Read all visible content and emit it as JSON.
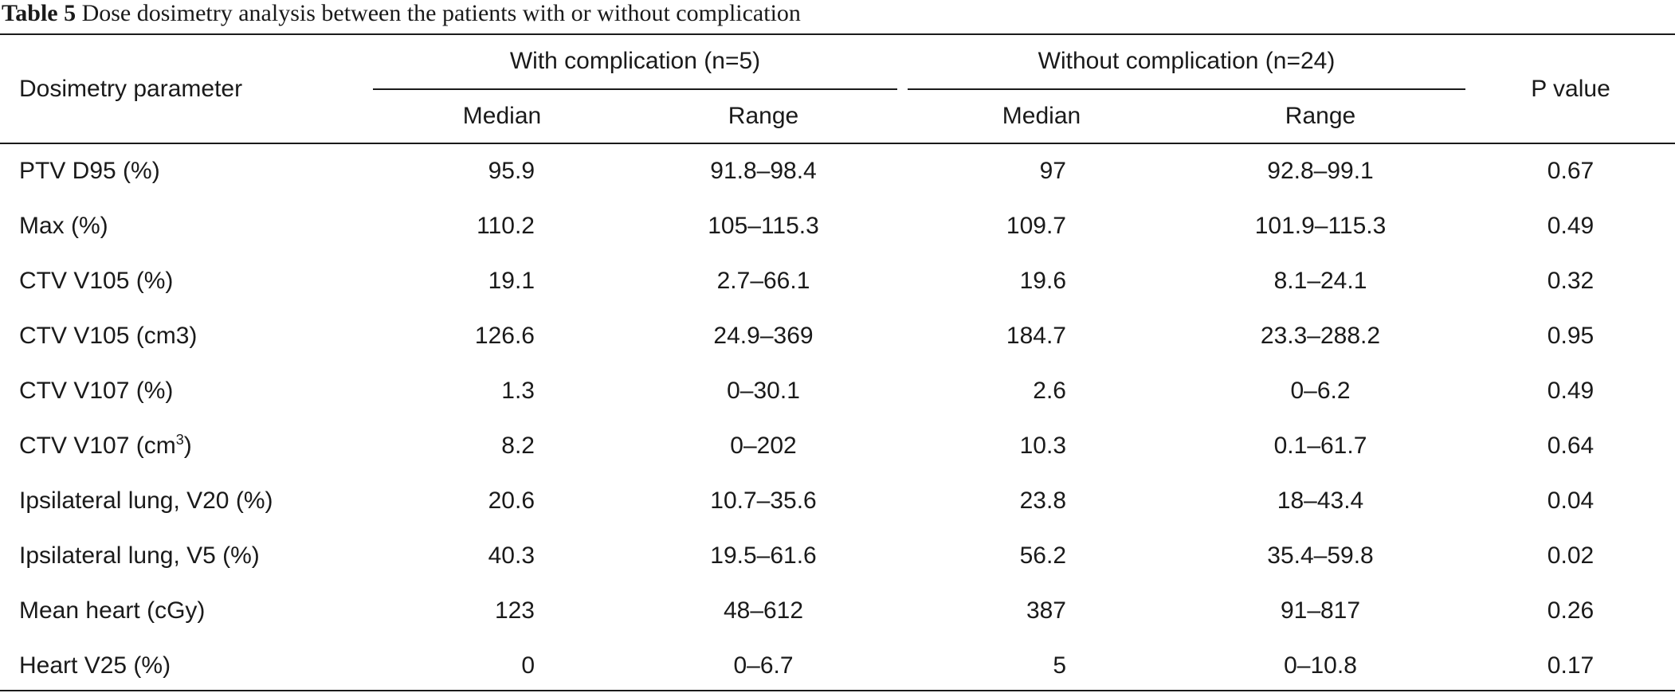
{
  "caption": {
    "label": "Table 5",
    "text": "Dose dosimetry analysis between the patients with or without complication"
  },
  "header": {
    "param": "Dosimetry parameter",
    "group1": "With complication (n=5)",
    "group2": "Without complication (n=24)",
    "median": "Median",
    "range": "Range",
    "pvalue": "P value"
  },
  "rows": [
    {
      "param": "PTV D95 (%)",
      "sup": "",
      "param_suffix": "",
      "m1": "95.9",
      "r1": "91.8–98.4",
      "m2": "97",
      "r2": "92.8–99.1",
      "p": "0.67"
    },
    {
      "param": "Max (%)",
      "sup": "",
      "param_suffix": "",
      "m1": "110.2",
      "r1": "105–115.3",
      "m2": "109.7",
      "r2": "101.9–115.3",
      "p": "0.49"
    },
    {
      "param": "CTV V105 (%)",
      "sup": "",
      "param_suffix": "",
      "m1": "19.1",
      "r1": "2.7–66.1",
      "m2": "19.6",
      "r2": "8.1–24.1",
      "p": "0.32"
    },
    {
      "param": "CTV V105 (cm3)",
      "sup": "",
      "param_suffix": "",
      "m1": "126.6",
      "r1": "24.9–369",
      "m2": "184.7",
      "r2": "23.3–288.2",
      "p": "0.95"
    },
    {
      "param": "CTV V107 (%)",
      "sup": "",
      "param_suffix": "",
      "m1": "1.3",
      "r1": "0–30.1",
      "m2": "2.6",
      "r2": "0–6.2",
      "p": "0.49"
    },
    {
      "param": "CTV V107 (cm",
      "sup": "3",
      "param_suffix": ")",
      "m1": "8.2",
      "r1": "0–202",
      "m2": "10.3",
      "r2": "0.1–61.7",
      "p": "0.64"
    },
    {
      "param": "Ipsilateral lung, V20 (%)",
      "sup": "",
      "param_suffix": "",
      "m1": "20.6",
      "r1": "10.7–35.6",
      "m2": "23.8",
      "r2": "18–43.4",
      "p": "0.04"
    },
    {
      "param": "Ipsilateral lung, V5 (%)",
      "sup": "",
      "param_suffix": "",
      "m1": "40.3",
      "r1": "19.5–61.6",
      "m2": "56.2",
      "r2": "35.4–59.8",
      "p": "0.02"
    },
    {
      "param": "Mean heart (cGy)",
      "sup": "",
      "param_suffix": "",
      "m1": "123",
      "r1": "48–612",
      "m2": "387",
      "r2": "91–817",
      "p": "0.26"
    },
    {
      "param": "Heart V25 (%)",
      "sup": "",
      "param_suffix": "",
      "m1": "0",
      "r1": "0–6.7",
      "m2": "5",
      "r2": "0–10.8",
      "p": "0.17"
    }
  ]
}
